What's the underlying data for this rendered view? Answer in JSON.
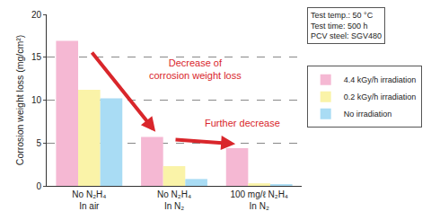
{
  "chart_data": {
    "type": "bar",
    "y_label": "Corrosion weight loss (mg/cm²)",
    "categories": [
      "No N₂H₄\nIn air",
      "No N₂H₄\nIn N₂",
      "100 mg/ℓ N₂H₄\nIn N₂"
    ],
    "series": [
      {
        "name": "4.4 kGy/h irradiation",
        "color": "#f5b8d3",
        "values": [
          16.9,
          5.7,
          4.4
        ]
      },
      {
        "name": "0.2 kGy/h irradiation",
        "color": "#faf3a8",
        "values": [
          11.2,
          2.3,
          0.3
        ]
      },
      {
        "name": "No irradiation",
        "color": "#a9dcf4",
        "values": [
          10.2,
          0.8,
          0.2
        ]
      }
    ],
    "ylim": [
      0,
      20
    ],
    "yticks": [
      0,
      5,
      10,
      15,
      20
    ],
    "grid": true,
    "legend": "right",
    "test_conditions": [
      "Test temp.: 50 °C",
      "Test time: 500 h",
      "PCV steel: SGV480"
    ],
    "annotations": [
      "Decrease of\ncorrosion weight loss",
      "Further decrease"
    ]
  }
}
